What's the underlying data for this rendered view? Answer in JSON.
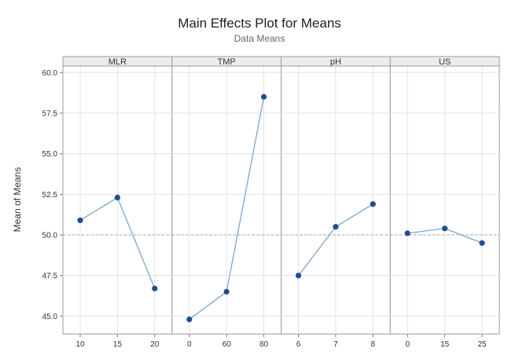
{
  "chart_data": {
    "type": "line",
    "title": "Main Effects Plot for Means",
    "subtitle": "Data Means",
    "ylabel": "Mean of Means",
    "ylim": [
      43.9,
      60.4
    ],
    "yticks": [
      45.0,
      47.5,
      50.0,
      52.5,
      55.0,
      57.5,
      60.0
    ],
    "ytick_labels": [
      "45.0",
      "47.5",
      "50.0",
      "52.5",
      "55.0",
      "57.5",
      "60.0"
    ],
    "reference_line": 50.0,
    "grid": true,
    "colors": {
      "line": "#7aa6cf",
      "point": "#1f4e8c",
      "reference": "#a9a9a9"
    },
    "panels": [
      {
        "factor": "MLR",
        "levels": [
          "10",
          "15",
          "20"
        ],
        "values": [
          50.9,
          52.3,
          46.7
        ]
      },
      {
        "factor": "TMP",
        "levels": [
          "0",
          "60",
          "80"
        ],
        "values": [
          44.8,
          46.5,
          58.5
        ]
      },
      {
        "factor": "pH",
        "levels": [
          "6",
          "7",
          "8"
        ],
        "values": [
          47.5,
          50.5,
          51.9
        ]
      },
      {
        "factor": "US",
        "levels": [
          "0",
          "15",
          "25"
        ],
        "values": [
          50.1,
          50.4,
          49.5
        ]
      }
    ]
  }
}
